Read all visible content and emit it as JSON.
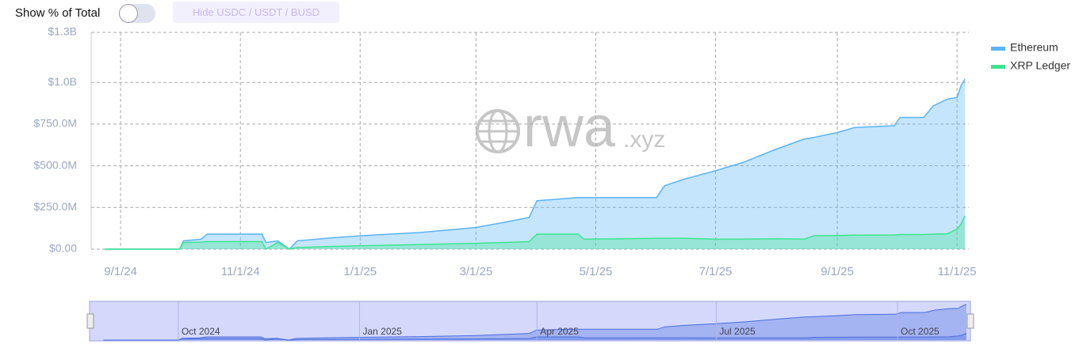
{
  "controls": {
    "toggle_label": "Show % of Total",
    "button": "Hide USDC / USDT / BUSD"
  },
  "watermark": {
    "text": "rwa",
    "suffix": ".xyz"
  },
  "chart_data": {
    "type": "area",
    "x": [
      "2024-08-24",
      "2024-10-01",
      "2024-10-03",
      "2024-10-12",
      "2024-10-15",
      "2024-11-12",
      "2024-11-14",
      "2024-11-20",
      "2024-11-26",
      "2024-11-30",
      "2024-12-15",
      "2025-01-01",
      "2025-02-01",
      "2025-03-01",
      "2025-03-15",
      "2025-03-28",
      "2025-04-01",
      "2025-04-22",
      "2025-04-25",
      "2025-05-15",
      "2025-06-01",
      "2025-06-05",
      "2025-06-15",
      "2025-07-01",
      "2025-07-15",
      "2025-08-01",
      "2025-08-15",
      "2025-08-20",
      "2025-09-01",
      "2025-09-10",
      "2025-09-30",
      "2025-10-03",
      "2025-10-15",
      "2025-10-20",
      "2025-10-27",
      "2025-11-01",
      "2025-11-03",
      "2025-11-05"
    ],
    "series": [
      {
        "name": "Ethereum",
        "color": "#5ab4f7",
        "values": [
          0,
          0,
          50000000,
          60000000,
          90000000,
          90000000,
          40000000,
          50000000,
          0,
          50000000,
          65000000,
          80000000,
          100000000,
          130000000,
          160000000,
          190000000,
          290000000,
          310000000,
          310000000,
          310000000,
          310000000,
          380000000,
          420000000,
          470000000,
          520000000,
          600000000,
          660000000,
          670000000,
          700000000,
          730000000,
          740000000,
          790000000,
          790000000,
          860000000,
          900000000,
          910000000,
          980000000,
          1020000000
        ]
      },
      {
        "name": "XRP Ledger",
        "color": "#3ee58f",
        "values": [
          0,
          0,
          40000000,
          42000000,
          45000000,
          45000000,
          0,
          40000000,
          0,
          10000000,
          15000000,
          20000000,
          28000000,
          35000000,
          40000000,
          45000000,
          90000000,
          90000000,
          60000000,
          62000000,
          65000000,
          65000000,
          65000000,
          60000000,
          60000000,
          62000000,
          60000000,
          80000000,
          82000000,
          84000000,
          85000000,
          88000000,
          88000000,
          90000000,
          92000000,
          120000000,
          150000000,
          200000000
        ]
      }
    ],
    "xlim": [
      "2024-08-17",
      "2025-11-07"
    ],
    "xticks": [
      {
        "value": "2024-09-01",
        "label": "9/1/24"
      },
      {
        "value": "2024-11-01",
        "label": "11/1/24"
      },
      {
        "value": "2025-01-01",
        "label": "1/1/25"
      },
      {
        "value": "2025-03-01",
        "label": "3/1/25"
      },
      {
        "value": "2025-05-01",
        "label": "5/1/25"
      },
      {
        "value": "2025-07-01",
        "label": "7/1/25"
      },
      {
        "value": "2025-09-01",
        "label": "9/1/25"
      },
      {
        "value": "2025-11-01",
        "label": "11/1/25"
      }
    ],
    "ylim": [
      0,
      1300000000
    ],
    "yticks": [
      {
        "value": 0,
        "label": "$0.00"
      },
      {
        "value": 250000000,
        "label": "$250.0M"
      },
      {
        "value": 500000000,
        "label": "$500.0M"
      },
      {
        "value": 750000000,
        "label": "$750.0M"
      },
      {
        "value": 1000000000,
        "label": "$1.0B"
      },
      {
        "value": 1300000000,
        "label": "$1.3B"
      }
    ],
    "grid": true,
    "legend": "top-right",
    "navigator_ticks": [
      {
        "value": "2024-10-01",
        "label": "Oct 2024"
      },
      {
        "value": "2025-01-01",
        "label": "Jan 2025"
      },
      {
        "value": "2025-04-01",
        "label": "Apr 2025"
      },
      {
        "value": "2025-07-01",
        "label": "Jul 2025"
      },
      {
        "value": "2025-10-01",
        "label": "Oct 2025"
      }
    ]
  }
}
